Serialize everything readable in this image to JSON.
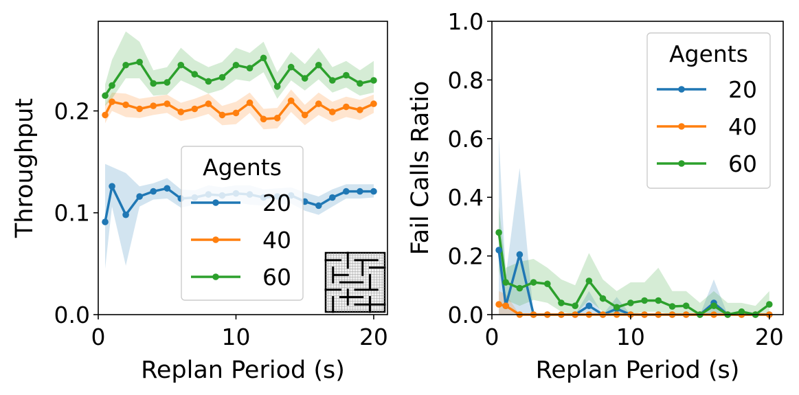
{
  "colors": {
    "s20": "#1f77b4",
    "s40": "#ff7f0e",
    "s60": "#2ca02c"
  },
  "chart_data": [
    {
      "type": "line",
      "xlabel": "Replan Period (s)",
      "ylabel": "Throughput",
      "xlim": [
        0,
        21
      ],
      "ylim": [
        0,
        0.288
      ],
      "xticks": [
        0,
        10,
        20
      ],
      "xtick_labels": [
        "0",
        "10",
        "20"
      ],
      "yticks": [
        0.0,
        0.1,
        0.2
      ],
      "ytick_labels": [
        "0.0",
        "0.1",
        "0.2"
      ],
      "legend": {
        "title": "Agents",
        "placement": "center-right"
      },
      "inset_icon": "maze-map-icon",
      "x": [
        0.5,
        1,
        2,
        3,
        4,
        5,
        6,
        7,
        8,
        9,
        10,
        11,
        12,
        13,
        14,
        15,
        16,
        17,
        18,
        19,
        20
      ],
      "series": [
        {
          "name": "20",
          "color": "#1f77b4",
          "values": [
            0.091,
            0.126,
            0.098,
            0.116,
            0.121,
            0.124,
            0.114,
            0.115,
            0.118,
            0.117,
            0.119,
            0.118,
            0.115,
            0.116,
            0.117,
            0.111,
            0.107,
            0.115,
            0.121,
            0.121,
            0.121
          ],
          "lower": [
            0.045,
            0.106,
            0.048,
            0.106,
            0.113,
            0.114,
            0.105,
            0.108,
            0.108,
            0.109,
            0.11,
            0.108,
            0.107,
            0.108,
            0.109,
            0.102,
            0.098,
            0.106,
            0.114,
            0.114,
            0.115
          ],
          "upper": [
            0.148,
            0.145,
            0.139,
            0.126,
            0.129,
            0.134,
            0.123,
            0.122,
            0.127,
            0.125,
            0.127,
            0.127,
            0.123,
            0.124,
            0.125,
            0.12,
            0.116,
            0.123,
            0.128,
            0.128,
            0.128
          ]
        },
        {
          "name": "40",
          "color": "#ff7f0e",
          "values": [
            0.196,
            0.209,
            0.206,
            0.202,
            0.205,
            0.207,
            0.199,
            0.202,
            0.207,
            0.196,
            0.198,
            0.208,
            0.192,
            0.193,
            0.21,
            0.196,
            0.207,
            0.199,
            0.204,
            0.201,
            0.207
          ],
          "lower": [
            0.188,
            0.2,
            0.194,
            0.193,
            0.196,
            0.198,
            0.19,
            0.193,
            0.197,
            0.186,
            0.187,
            0.198,
            0.182,
            0.183,
            0.199,
            0.186,
            0.196,
            0.189,
            0.194,
            0.191,
            0.198
          ],
          "upper": [
            0.206,
            0.218,
            0.217,
            0.212,
            0.214,
            0.216,
            0.208,
            0.212,
            0.217,
            0.205,
            0.209,
            0.218,
            0.202,
            0.203,
            0.221,
            0.206,
            0.218,
            0.209,
            0.214,
            0.211,
            0.216
          ]
        },
        {
          "name": "60",
          "color": "#2ca02c",
          "values": [
            0.215,
            0.225,
            0.245,
            0.248,
            0.227,
            0.228,
            0.245,
            0.236,
            0.229,
            0.233,
            0.245,
            0.242,
            0.252,
            0.224,
            0.243,
            0.232,
            0.245,
            0.23,
            0.235,
            0.227,
            0.23
          ],
          "lower": [
            0.205,
            0.212,
            0.232,
            0.232,
            0.215,
            0.216,
            0.23,
            0.224,
            0.217,
            0.221,
            0.231,
            0.229,
            0.238,
            0.212,
            0.23,
            0.22,
            0.231,
            0.218,
            0.223,
            0.215,
            0.218
          ],
          "upper": [
            0.226,
            0.25,
            0.278,
            0.268,
            0.24,
            0.243,
            0.262,
            0.25,
            0.243,
            0.248,
            0.262,
            0.257,
            0.268,
            0.238,
            0.258,
            0.246,
            0.262,
            0.243,
            0.249,
            0.24,
            0.249
          ]
        }
      ]
    },
    {
      "type": "line",
      "xlabel": "Replan Period (s)",
      "ylabel": "Fail Calls Ratio",
      "xlim": [
        0,
        21
      ],
      "ylim": [
        0,
        1.0
      ],
      "xticks": [
        0,
        10,
        20
      ],
      "xtick_labels": [
        "0",
        "10",
        "20"
      ],
      "yticks": [
        0.0,
        0.2,
        0.4,
        0.6,
        0.8,
        1.0
      ],
      "ytick_labels": [
        "0.0",
        "0.2",
        "0.4",
        "0.6",
        "0.8",
        "1.0"
      ],
      "legend": {
        "title": "Agents",
        "placement": "upper-right"
      },
      "x": [
        0.5,
        1,
        2,
        3,
        4,
        5,
        6,
        7,
        8,
        9,
        10,
        11,
        12,
        13,
        14,
        15,
        16,
        17,
        18,
        19,
        20
      ],
      "series": [
        {
          "name": "20",
          "color": "#1f77b4",
          "values": [
            0.22,
            0.03,
            0.205,
            0.0,
            0.0,
            0.0,
            0.0,
            0.03,
            0.0,
            0.02,
            0.0,
            0.0,
            0.0,
            0.0,
            0.0,
            0.0,
            0.04,
            0.0,
            0.0,
            0.0,
            0.0
          ],
          "lower": [
            0.0,
            0.0,
            0.0,
            0.0,
            0.0,
            0.0,
            0.0,
            0.0,
            0.0,
            0.0,
            0.0,
            0.0,
            0.0,
            0.0,
            0.0,
            0.0,
            0.0,
            0.0,
            0.0,
            0.0,
            0.0
          ],
          "upper": [
            0.61,
            0.13,
            0.5,
            0.0,
            0.0,
            0.0,
            0.0,
            0.08,
            0.0,
            0.06,
            0.0,
            0.0,
            0.0,
            0.0,
            0.0,
            0.0,
            0.12,
            0.0,
            0.0,
            0.0,
            0.0
          ]
        },
        {
          "name": "40",
          "color": "#ff7f0e",
          "values": [
            0.035,
            0.03,
            0.0,
            0.0,
            0.0,
            0.0,
            0.0,
            0.0,
            0.0,
            0.0,
            0.0,
            0.0,
            0.0,
            0.0,
            0.0,
            0.0,
            0.0,
            0.0,
            0.0,
            0.0,
            0.0
          ],
          "lower": [
            0.0,
            0.0,
            0.0,
            0.0,
            0.0,
            0.0,
            0.0,
            0.0,
            0.0,
            0.0,
            0.0,
            0.0,
            0.0,
            0.0,
            0.0,
            0.0,
            0.0,
            0.0,
            0.0,
            0.0,
            0.0
          ],
          "upper": [
            0.08,
            0.07,
            0.0,
            0.0,
            0.0,
            0.0,
            0.0,
            0.0,
            0.0,
            0.0,
            0.0,
            0.0,
            0.0,
            0.0,
            0.0,
            0.0,
            0.0,
            0.0,
            0.0,
            0.0,
            0.0
          ]
        },
        {
          "name": "60",
          "color": "#2ca02c",
          "values": [
            0.28,
            0.11,
            0.09,
            0.11,
            0.105,
            0.04,
            0.03,
            0.115,
            0.055,
            0.025,
            0.04,
            0.048,
            0.048,
            0.028,
            0.03,
            0.0,
            0.03,
            0.0,
            0.01,
            0.0,
            0.035
          ],
          "lower": [
            0.15,
            0.05,
            0.03,
            0.05,
            0.04,
            0.01,
            0.0,
            0.05,
            0.01,
            0.0,
            0.0,
            0.01,
            0.01,
            0.0,
            0.0,
            0.0,
            0.0,
            0.0,
            0.0,
            0.0,
            0.0
          ],
          "upper": [
            0.37,
            0.16,
            0.18,
            0.19,
            0.16,
            0.12,
            0.1,
            0.21,
            0.12,
            0.08,
            0.11,
            0.11,
            0.16,
            0.08,
            0.08,
            0.04,
            0.08,
            0.04,
            0.04,
            0.03,
            0.08
          ]
        }
      ]
    }
  ]
}
